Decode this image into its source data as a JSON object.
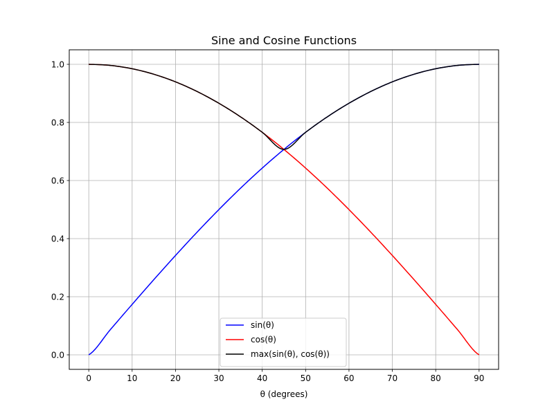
{
  "chart_data": {
    "type": "line",
    "title": "Sine and Cosine Functions",
    "xlabel": "θ (degrees)",
    "ylabel": "",
    "xlim": [
      -4.5,
      94.5
    ],
    "ylim": [
      -0.05,
      1.05
    ],
    "xticks": [
      0,
      10,
      20,
      30,
      40,
      50,
      60,
      70,
      80,
      90
    ],
    "yticks": [
      0.0,
      0.2,
      0.4,
      0.6,
      0.8,
      1.0
    ],
    "xtick_labels": [
      "0",
      "10",
      "20",
      "30",
      "40",
      "50",
      "60",
      "70",
      "80",
      "90"
    ],
    "ytick_labels": [
      "0.0",
      "0.2",
      "0.4",
      "0.6",
      "0.8",
      "1.0"
    ],
    "grid": true,
    "legend_position": "lower center",
    "x": [
      0,
      5,
      10,
      15,
      20,
      25,
      30,
      35,
      40,
      45,
      50,
      55,
      60,
      65,
      70,
      75,
      80,
      85,
      90
    ],
    "series": [
      {
        "name": "sin(θ)",
        "color": "#0000ff",
        "values": [
          0.0,
          0.0872,
          0.1736,
          0.2588,
          0.342,
          0.4226,
          0.5,
          0.5736,
          0.6428,
          0.7071,
          0.766,
          0.8192,
          0.866,
          0.9063,
          0.9397,
          0.9659,
          0.9848,
          0.9962,
          1.0
        ]
      },
      {
        "name": "cos(θ)",
        "color": "#ff0000",
        "values": [
          1.0,
          0.9962,
          0.9848,
          0.9659,
          0.9397,
          0.9063,
          0.866,
          0.8192,
          0.766,
          0.7071,
          0.6428,
          0.5736,
          0.5,
          0.4226,
          0.342,
          0.2588,
          0.1736,
          0.0872,
          0.0
        ]
      },
      {
        "name": "max(sin(θ), cos(θ))",
        "color": "#000000",
        "values": [
          1.0,
          0.9962,
          0.9848,
          0.9659,
          0.9397,
          0.9063,
          0.866,
          0.8192,
          0.766,
          0.7071,
          0.766,
          0.8192,
          0.866,
          0.9063,
          0.9397,
          0.9659,
          0.9848,
          0.9962,
          1.0
        ]
      }
    ]
  }
}
